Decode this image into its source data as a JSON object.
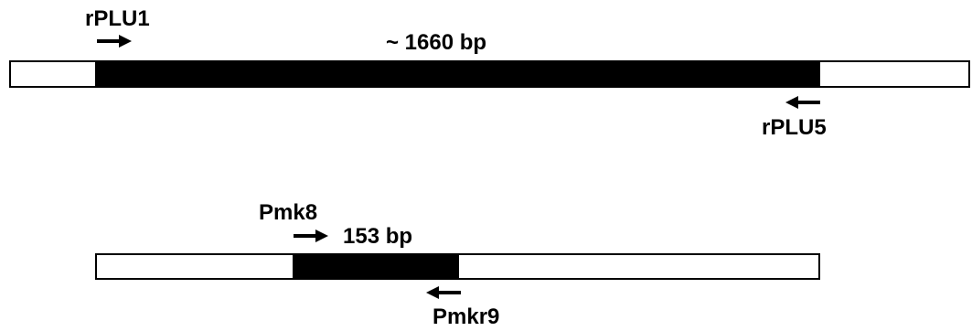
{
  "colors": {
    "amplicon": "#000000",
    "flank": "#ffffff",
    "outline": "#000000"
  },
  "constructs": [
    {
      "forward_primer": {
        "label": "rPLU1",
        "arrow_icon": "arrow-right-icon"
      },
      "amplicon_label": "~ 1660 bp",
      "reverse_primer": {
        "label": "rPLU5",
        "arrow_icon": "arrow-left-icon"
      }
    },
    {
      "forward_primer": {
        "label": "Pmk8",
        "arrow_icon": "arrow-right-icon"
      },
      "amplicon_label": "153 bp",
      "reverse_primer": {
        "label": "Pmkr9",
        "arrow_icon": "arrow-left-icon"
      }
    }
  ]
}
